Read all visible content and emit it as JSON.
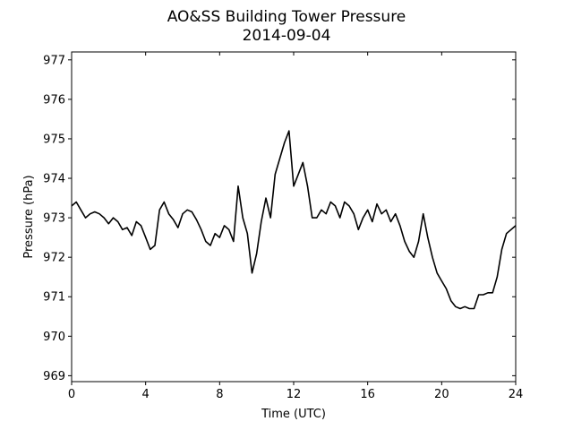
{
  "chart_data": {
    "type": "line",
    "title": "AO&SS Building Tower Pressure",
    "subtitle": "2014-09-04",
    "xlabel": "Time (UTC)",
    "ylabel": "Pressure (hPa)",
    "xlim": [
      0,
      24
    ],
    "ylim": [
      968.85,
      977.2
    ],
    "xticks": [
      0,
      4,
      8,
      12,
      16,
      20,
      24
    ],
    "xtick_labels": [
      "0",
      "4",
      "8",
      "12",
      "16",
      "20",
      "24"
    ],
    "yticks": [
      969,
      970,
      971,
      972,
      973,
      974,
      975,
      976,
      977
    ],
    "ytick_labels": [
      "969",
      "970",
      "971",
      "972",
      "973",
      "974",
      "975",
      "976",
      "977"
    ],
    "grid": false,
    "line_color": "#000000",
    "series": [
      {
        "x": [
          0.0,
          0.25,
          0.5,
          0.75,
          1.0,
          1.25,
          1.5,
          1.75,
          2.0,
          2.25,
          2.5,
          2.75,
          3.0,
          3.25,
          3.5,
          3.75,
          4.0,
          4.25,
          4.5,
          4.75,
          5.0,
          5.25,
          5.5,
          5.75,
          6.0,
          6.25,
          6.5,
          6.75,
          7.0,
          7.25,
          7.5,
          7.75,
          8.0,
          8.25,
          8.5,
          8.75,
          9.0,
          9.25,
          9.5,
          9.75,
          10.0,
          10.25,
          10.5,
          10.75,
          11.0,
          11.25,
          11.5,
          11.75,
          12.0,
          12.25,
          12.5,
          12.75,
          13.0,
          13.25,
          13.5,
          13.75,
          14.0,
          14.25,
          14.5,
          14.75,
          15.0,
          15.25,
          15.5,
          15.75,
          16.0,
          16.25,
          16.5,
          16.75,
          17.0,
          17.25,
          17.5,
          17.75,
          18.0,
          18.25,
          18.5,
          18.75,
          19.0,
          19.25,
          19.5,
          19.75,
          20.0,
          20.25,
          20.5,
          20.75,
          21.0,
          21.25,
          21.5,
          21.75,
          22.0,
          22.25,
          22.5,
          22.75,
          23.0,
          23.25,
          23.5,
          23.75,
          24.0
        ],
        "values": [
          973.3,
          973.4,
          973.2,
          973.0,
          973.1,
          973.15,
          973.1,
          973.0,
          972.85,
          973.0,
          972.9,
          972.7,
          972.75,
          972.55,
          972.9,
          972.8,
          972.5,
          972.2,
          972.3,
          973.2,
          973.4,
          973.1,
          972.95,
          972.75,
          973.1,
          973.2,
          973.15,
          972.95,
          972.7,
          972.4,
          972.3,
          972.6,
          972.5,
          972.8,
          972.7,
          972.4,
          973.8,
          973.0,
          972.6,
          971.6,
          972.1,
          972.9,
          973.5,
          973.0,
          974.1,
          974.5,
          974.9,
          975.2,
          973.8,
          974.1,
          974.4,
          973.8,
          973.0,
          973.0,
          973.2,
          973.1,
          973.4,
          973.3,
          973.0,
          973.4,
          973.3,
          973.1,
          972.7,
          973.0,
          973.2,
          972.9,
          973.35,
          973.1,
          973.2,
          972.9,
          973.1,
          972.8,
          972.4,
          972.15,
          972.0,
          972.4,
          973.1,
          972.5,
          972.0,
          971.6,
          971.4,
          971.2,
          970.9,
          970.75,
          970.7,
          970.75,
          970.7,
          970.7,
          971.05,
          971.05,
          971.1,
          971.1,
          971.5,
          972.2,
          972.6,
          972.7,
          972.8
        ]
      }
    ]
  }
}
